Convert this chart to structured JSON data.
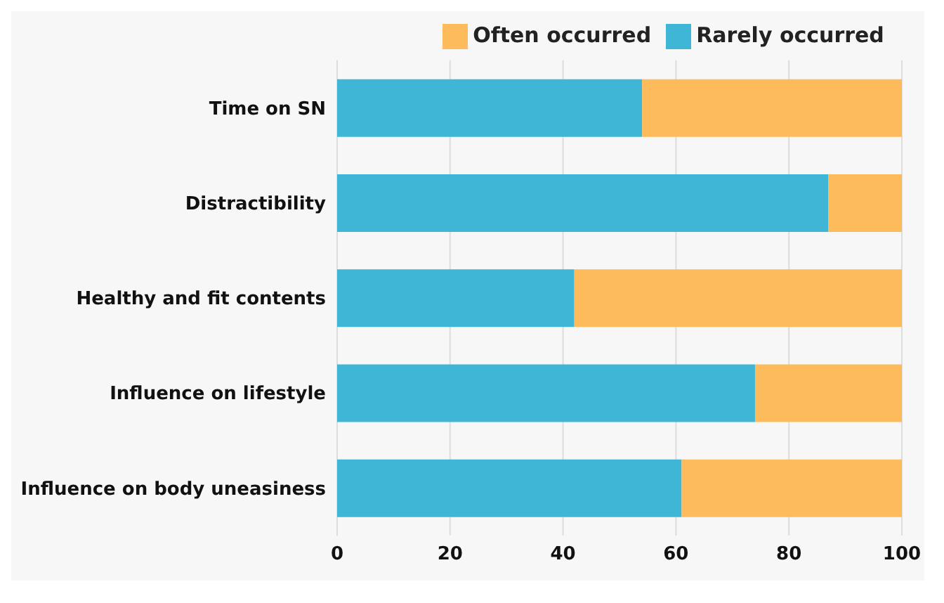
{
  "chart_data": {
    "type": "bar",
    "orientation": "horizontal",
    "stacked": true,
    "categories": [
      "Time on SN",
      "Distractibility",
      "Healthy and fit contents",
      "Influence on lifestyle",
      "Influence on body uneasiness"
    ],
    "series": [
      {
        "name": "Rarely occurred",
        "color": "#40b6d6",
        "values": [
          54,
          87,
          42,
          74,
          61
        ]
      },
      {
        "name": "Often occurred",
        "color": "#fdbb5b",
        "values": [
          46,
          13,
          58,
          26,
          39
        ]
      }
    ],
    "xlim": [
      0,
      100
    ],
    "xticks": [
      0,
      20,
      40,
      60,
      80,
      100
    ],
    "grid": "x",
    "legend": "top"
  }
}
